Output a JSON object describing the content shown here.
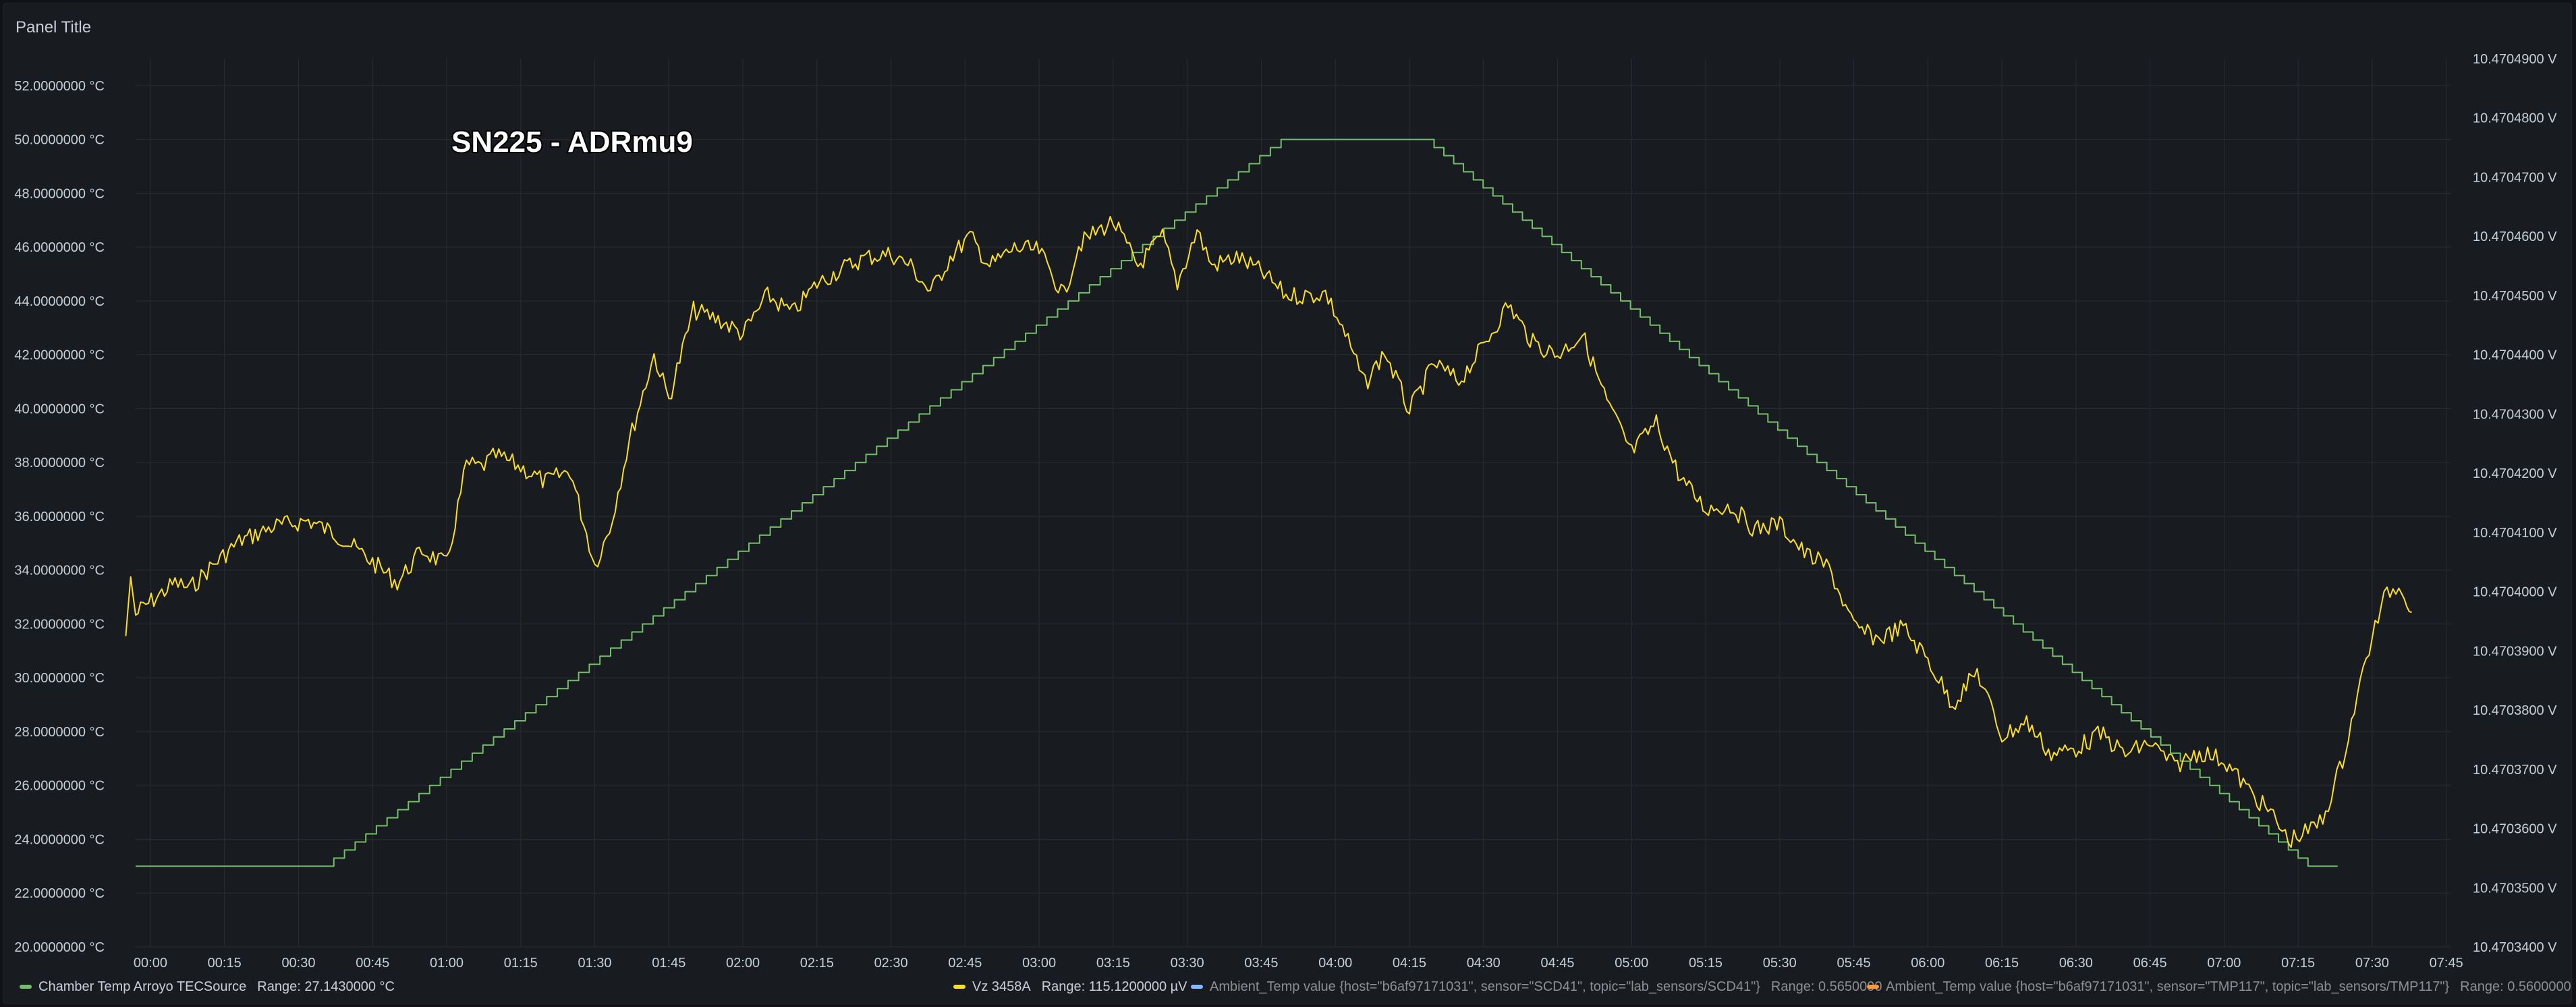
{
  "panel": {
    "title": "Panel Title"
  },
  "annotation": "SN225 - ADRmu9",
  "colors": {
    "green": "#73bf69",
    "yellow": "#fade2a",
    "blue": "#8ab8ff",
    "orange": "#ff9830",
    "grid": "#2a2d33"
  },
  "legend": [
    {
      "label": "Chamber Temp Arroyo TECSource",
      "range": "Range: 27.1430000 °C",
      "color": "#73bf69",
      "dim": false
    },
    {
      "label": "Vz 3458A",
      "range": "Range: 115.1200000 µV",
      "color": "#fade2a",
      "dim": false
    },
    {
      "label": "Ambient_Temp value {host=\"b6af97171031\", sensor=\"SCD41\", topic=\"lab_sensors/SCD41\"}",
      "range": "Range: 0.5650000",
      "color": "#8ab8ff",
      "dim": true
    },
    {
      "label": "Ambient_Temp value {host=\"b6af97171031\", sensor=\"TMP117\", topic=\"lab_sensors/TMP117\"}",
      "range": "Range: 0.5600000",
      "color": "#ff9830",
      "dim": true
    }
  ],
  "chart_data": {
    "type": "line",
    "title": "Panel Title",
    "x_unit": "hours",
    "x_ticks": [
      "00:00",
      "00:15",
      "00:30",
      "00:45",
      "01:00",
      "01:15",
      "01:30",
      "01:45",
      "02:00",
      "02:15",
      "02:30",
      "02:45",
      "03:00",
      "03:15",
      "03:30",
      "03:45",
      "04:00",
      "04:15",
      "04:30",
      "04:45",
      "05:00",
      "05:15",
      "05:30",
      "05:45",
      "06:00",
      "06:15",
      "06:30",
      "06:45",
      "07:00",
      "07:15",
      "07:30",
      "07:45"
    ],
    "xlim": [
      "23:57",
      "07:46"
    ],
    "y_left": {
      "ticks": [
        "20.0000000 °C",
        "22.0000000 °C",
        "24.0000000 °C",
        "26.0000000 °C",
        "28.0000000 °C",
        "30.0000000 °C",
        "32.0000000 °C",
        "34.0000000 °C",
        "36.0000000 °C",
        "38.0000000 °C",
        "40.0000000 °C",
        "42.0000000 °C",
        "44.0000000 °C",
        "46.0000000 °C",
        "48.0000000 °C",
        "50.0000000 °C",
        "52.0000000 °C"
      ],
      "ylim": [
        20,
        53
      ]
    },
    "y_right": {
      "ticks": [
        "10.4703400 V",
        "10.4703500 V",
        "10.4703600 V",
        "10.4703700 V",
        "10.4703800 V",
        "10.4703900 V",
        "10.4704000 V",
        "10.4704100 V",
        "10.4704200 V",
        "10.4704300 V",
        "10.4704400 V",
        "10.4704500 V",
        "10.4704600 V",
        "10.4704700 V",
        "10.4704800 V",
        "10.4704900 V"
      ],
      "ylim": [
        10.47034,
        10.47049
      ]
    },
    "grid": true,
    "legend_position": "bottom",
    "series": [
      {
        "name": "Chamber Temp Arroyo TECSource",
        "axis": "left",
        "step": true,
        "points": [
          [
            "23:57",
            23.0
          ],
          [
            "00:35",
            23.0
          ],
          [
            "03:49",
            50.0
          ],
          [
            "04:18",
            50.0
          ],
          [
            "07:17",
            23.0
          ],
          [
            "07:23",
            23.0
          ]
        ]
      },
      {
        "name": "Vz 3458A",
        "axis": "right",
        "points": [
          [
            "23:55",
            10.4703925
          ],
          [
            "23:56",
            10.4704025
          ],
          [
            "23:57",
            10.470396
          ],
          [
            "23:58",
            10.470397
          ],
          [
            "00:05",
            10.4704015
          ],
          [
            "00:08",
            10.4704005
          ],
          [
            "00:12",
            10.470404
          ],
          [
            "00:18",
            10.4704085
          ],
          [
            "00:25",
            10.470411
          ],
          [
            "00:32",
            10.470412
          ],
          [
            "00:38",
            10.4704095
          ],
          [
            "00:45",
            10.470405
          ],
          [
            "00:50",
            10.4704015
          ],
          [
            "00:55",
            10.470407
          ],
          [
            "01:00",
            10.4704045
          ],
          [
            "01:04",
            10.4704215
          ],
          [
            "01:07",
            10.470421
          ],
          [
            "01:10",
            10.470423
          ],
          [
            "01:15",
            10.470421
          ],
          [
            "01:20",
            10.4704185
          ],
          [
            "01:25",
            10.4704205
          ],
          [
            "01:30",
            10.4704045
          ],
          [
            "01:33",
            10.4704105
          ],
          [
            "01:37",
            10.4704255
          ],
          [
            "01:42",
            10.47044
          ],
          [
            "01:45",
            10.4704325
          ],
          [
            "01:50",
            10.4704475
          ],
          [
            "01:55",
            10.470446
          ],
          [
            "02:00",
            10.4704435
          ],
          [
            "02:05",
            10.47045
          ],
          [
            "02:10",
            10.470447
          ],
          [
            "02:15",
            10.470452
          ],
          [
            "02:20",
            10.4704545
          ],
          [
            "02:25",
            10.4704565
          ],
          [
            "02:30",
            10.470457
          ],
          [
            "02:34",
            10.470455
          ],
          [
            "02:38",
            10.4704505
          ],
          [
            "02:42",
            10.4704565
          ],
          [
            "02:46",
            10.47046
          ],
          [
            "02:50",
            10.470455
          ],
          [
            "02:55",
            10.470458
          ],
          [
            "03:00",
            10.4704575
          ],
          [
            "03:05",
            10.47045
          ],
          [
            "03:08",
            10.4704585
          ],
          [
            "03:12",
            10.470461
          ],
          [
            "03:15",
            10.4704625
          ],
          [
            "03:20",
            10.470455
          ],
          [
            "03:25",
            10.47046
          ],
          [
            "03:28",
            10.470452
          ],
          [
            "03:32",
            10.470461
          ],
          [
            "03:35",
            10.470455
          ],
          [
            "03:40",
            10.4704565
          ],
          [
            "03:45",
            10.470454
          ],
          [
            "03:50",
            10.47045
          ],
          [
            "03:55",
            10.47045
          ],
          [
            "03:58",
            10.4704505
          ],
          [
            "04:02",
            10.4704435
          ],
          [
            "04:06",
            10.470435
          ],
          [
            "04:10",
            10.4704405
          ],
          [
            "04:15",
            10.4704305
          ],
          [
            "04:20",
            10.4704385
          ],
          [
            "04:25",
            10.4704355
          ],
          [
            "04:30",
            10.4704415
          ],
          [
            "04:35",
            10.4704485
          ],
          [
            "04:40",
            10.470442
          ],
          [
            "04:45",
            10.47044
          ],
          [
            "04:50",
            10.4704435
          ],
          [
            "04:55",
            10.470432
          ],
          [
            "05:00",
            10.4704235
          ],
          [
            "05:05",
            10.4704285
          ],
          [
            "05:10",
            10.470419
          ],
          [
            "05:15",
            10.470414
          ],
          [
            "05:20",
            10.4704145
          ],
          [
            "05:25",
            10.4704105
          ],
          [
            "05:30",
            10.4704115
          ],
          [
            "05:35",
            10.4704065
          ],
          [
            "05:40",
            10.470404
          ],
          [
            "05:45",
            10.470394
          ],
          [
            "05:50",
            10.470392
          ],
          [
            "05:55",
            10.470394
          ],
          [
            "06:00",
            10.4703885
          ],
          [
            "06:05",
            10.470381
          ],
          [
            "06:10",
            10.4703865
          ],
          [
            "06:15",
            10.4703755
          ],
          [
            "06:20",
            10.470378
          ],
          [
            "06:25",
            10.4703725
          ],
          [
            "06:30",
            10.4703735
          ],
          [
            "06:35",
            10.470376
          ],
          [
            "06:40",
            10.4703725
          ],
          [
            "06:45",
            10.4703745
          ],
          [
            "06:50",
            10.4703705
          ],
          [
            "06:55",
            10.470373
          ],
          [
            "07:00",
            10.4703715
          ],
          [
            "07:05",
            10.4703665
          ],
          [
            "07:10",
            10.470362
          ],
          [
            "07:13",
            10.470358
          ],
          [
            "07:17",
            10.4703595
          ],
          [
            "07:20",
            10.4703615
          ],
          [
            "07:24",
            10.4703715
          ],
          [
            "07:27",
            10.4703825
          ],
          [
            "07:30",
            10.4703925
          ],
          [
            "07:33",
            10.4704
          ],
          [
            "07:36",
            10.470401
          ],
          [
            "07:38",
            10.4703965
          ]
        ]
      }
    ]
  }
}
